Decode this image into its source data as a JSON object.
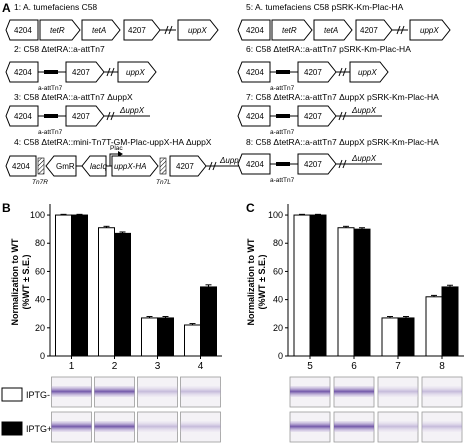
{
  "panel_a": {
    "label": "A",
    "constructs": [
      {
        "id": "1",
        "text": "1: A. tumefaciens C58"
      },
      {
        "id": "2",
        "text": "2: C58 ΔtetRA::a-attTn7"
      },
      {
        "id": "3",
        "text": "3: C58 ΔtetRA::a-attTn7 ΔuppX"
      },
      {
        "id": "4",
        "text": "4: C58 ΔtetRA::mini-Tn7T-GM-Plac-uppX-HA ΔuppX"
      },
      {
        "id": "5",
        "text": "5: A. tumefaciens C58 pSRK-Km-Plac-HA"
      },
      {
        "id": "6",
        "text": "6: C58 ΔtetRA::a-attTn7 pSRK-Km-Plac-HA"
      },
      {
        "id": "7",
        "text": "7: C58 ΔtetRA::a-attTn7 ΔuppX pSRK-Km-Plac-HA"
      },
      {
        "id": "8",
        "text": "8: C58 ΔtetRA::a-attTn7 ΔuppX pSRK-Km-Plac-HA"
      }
    ],
    "genes": {
      "g4204": "4204",
      "tetR": "tetR",
      "tetA": "tetA",
      "g4207": "4207",
      "uppX": "uppX",
      "duppX": "ΔuppX",
      "att": "a-attTn7",
      "tn7r": "Tn7R",
      "tn7l": "Tn7L",
      "gm": "GmR",
      "lacI": "lacIq",
      "plac": "Plac",
      "uppxha": "uppX-HA"
    }
  },
  "panel_b": {
    "label": "B"
  },
  "panel_c": {
    "label": "C"
  },
  "legend": {
    "minus": "IPTG-",
    "plus": "IPTG+"
  },
  "chart_data": [
    {
      "type": "bar",
      "panel": "B",
      "categories": [
        "1",
        "2",
        "3",
        "4"
      ],
      "series": [
        {
          "name": "IPTG-",
          "values": [
            100,
            91,
            27,
            22
          ],
          "errors": [
            0.5,
            1.0,
            1.0,
            1.0
          ]
        },
        {
          "name": "IPTG+",
          "values": [
            100,
            87,
            27,
            49
          ],
          "errors": [
            0.5,
            1.0,
            1.0,
            1.5
          ]
        }
      ],
      "ylabel": "Normalization to WT (%WT ± S.E.)",
      "yticks": [
        0,
        20,
        40,
        60,
        80,
        100
      ],
      "ylim": [
        0,
        105
      ]
    },
    {
      "type": "bar",
      "panel": "C",
      "categories": [
        "5",
        "6",
        "7",
        "8"
      ],
      "series": [
        {
          "name": "IPTG-",
          "values": [
            100,
            91,
            27,
            42
          ],
          "errors": [
            0.5,
            1.0,
            1.0,
            1.0
          ]
        },
        {
          "name": "IPTG+",
          "values": [
            100,
            90,
            27,
            49
          ],
          "errors": [
            0.5,
            1.0,
            1.0,
            1.2
          ]
        }
      ],
      "ylabel": "Normalization to WT (%WT ± S.E.)",
      "yticks": [
        0,
        20,
        40,
        60,
        80,
        100
      ],
      "ylim": [
        0,
        105
      ]
    }
  ],
  "colors": {
    "minus_fill": "#ffffff",
    "plus_fill": "#000000",
    "stain": "#7b5fae"
  }
}
